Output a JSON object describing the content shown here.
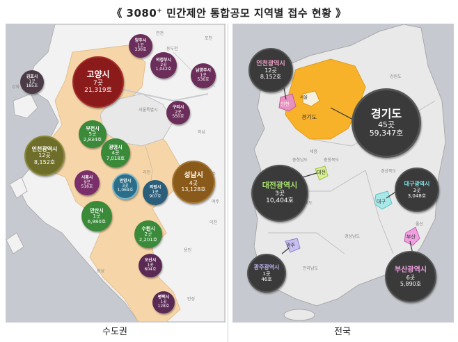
{
  "title": {
    "prefix": "《 3080",
    "sup": "+",
    "suffix": " 민간제안 통합공모 지역별 접수 현황 》"
  },
  "captions": {
    "left": "수도권",
    "right": "전국"
  },
  "left_map": {
    "bubbles": [
      {
        "key": "yangju",
        "name": "양주시",
        "count": "1곳",
        "units": "330호",
        "color": "#6b2e5a"
      },
      {
        "key": "uijeongbu",
        "name": "의정부시",
        "count": "2곳",
        "units": "1,042호",
        "color": "#6b2e5a"
      },
      {
        "key": "namyangju",
        "name": "남양주시",
        "count": "1곳",
        "units": "536호",
        "color": "#6b2e5a"
      },
      {
        "key": "goyang",
        "name": "고양시",
        "count": "7곳",
        "units": "21,319호",
        "color": "#8b1a1a"
      },
      {
        "key": "gimpo",
        "name": "김포시",
        "count": "1곳",
        "units": "185호",
        "color": "#4a3b47"
      },
      {
        "key": "guri",
        "name": "구리시",
        "count": "2곳",
        "units": "550호",
        "color": "#6b2e5a"
      },
      {
        "key": "bucheon",
        "name": "부천시",
        "count": "5곳",
        "units": "2,834호",
        "color": "#3a8a3a"
      },
      {
        "key": "incheon",
        "name": "인천광역시",
        "count": "12곳",
        "units": "8,152호",
        "color": "#6e6e2a"
      },
      {
        "key": "gwangmyeong",
        "name": "광명시",
        "count": "4곳",
        "units": "7,018호",
        "color": "#3a8a3a"
      },
      {
        "key": "siheung",
        "name": "시흥시",
        "count": "9곳",
        "units": "516호",
        "color": "#7a2f6a"
      },
      {
        "key": "anyang",
        "name": "안양시",
        "count": "3곳",
        "units": "1,069호",
        "color": "#2a6e8a"
      },
      {
        "key": "uiwang",
        "name": "의왕시",
        "count": "1곳",
        "units": "907호",
        "color": "#2a5e7a"
      },
      {
        "key": "seongnam",
        "name": "성남시",
        "count": "4곳",
        "units": "13,128호",
        "color": "#8a5a1a"
      },
      {
        "key": "ansan",
        "name": "안산시",
        "count": "1곳",
        "units": "6,980호",
        "color": "#3a8a3a"
      },
      {
        "key": "suwon",
        "name": "수원시",
        "count": "2곳",
        "units": "2,201호",
        "color": "#3a8a3a"
      },
      {
        "key": "osan",
        "name": "오산시",
        "count": "1곳",
        "units": "604호",
        "color": "#5a2a55"
      },
      {
        "key": "pyeongtaek",
        "name": "평택시",
        "count": "1곳",
        "units": "128호",
        "color": "#5a2a55"
      }
    ],
    "region_labels": [
      "포천",
      "연천",
      "동두천",
      "서울특별시",
      "하남",
      "과천",
      "광주",
      "용인",
      "화성",
      "이천",
      "안성",
      "여주",
      "강화",
      "서울"
    ]
  },
  "right_map": {
    "bubbles": [
      {
        "key": "incheon",
        "name": "인천광역시",
        "count": "12곳",
        "units": "8,152호",
        "color": "#3a3a3a",
        "name_color": "#f0a0c8"
      },
      {
        "key": "gyeonggi",
        "name": "경기도",
        "count": "45곳",
        "units": "59,347호",
        "color": "#3a3a3a",
        "name_color": "#ffffff"
      },
      {
        "key": "daejeon",
        "name": "대전광역시",
        "count": "3곳",
        "units": "10,404호",
        "color": "#3a3a3a",
        "name_color": "#a8e070"
      },
      {
        "key": "daegu",
        "name": "대구광역시",
        "count": "3곳",
        "units": "3,048호",
        "color": "#3a3a3a",
        "name_color": "#80e0e0"
      },
      {
        "key": "gwangju",
        "name": "광주광역시",
        "count": "1곳",
        "units": "46호",
        "color": "#3a3a3a",
        "name_color": "#b8b0f0"
      },
      {
        "key": "busan",
        "name": "부산광역시",
        "count": "6곳",
        "units": "5,890호",
        "color": "#3a3a3a",
        "name_color": "#f0a0e0"
      }
    ],
    "map_labels": {
      "gyeonggi": "경기도",
      "seoul": "서울",
      "incheon": "인천",
      "daejeon": "대전",
      "daegu": "대구",
      "gwangju": "광주",
      "busan": "부산"
    },
    "region_labels": [
      "강원도",
      "충청북도",
      "충청남도",
      "경상북도",
      "전라북도",
      "경상남도",
      "전라남도",
      "울산",
      "세종"
    ]
  }
}
